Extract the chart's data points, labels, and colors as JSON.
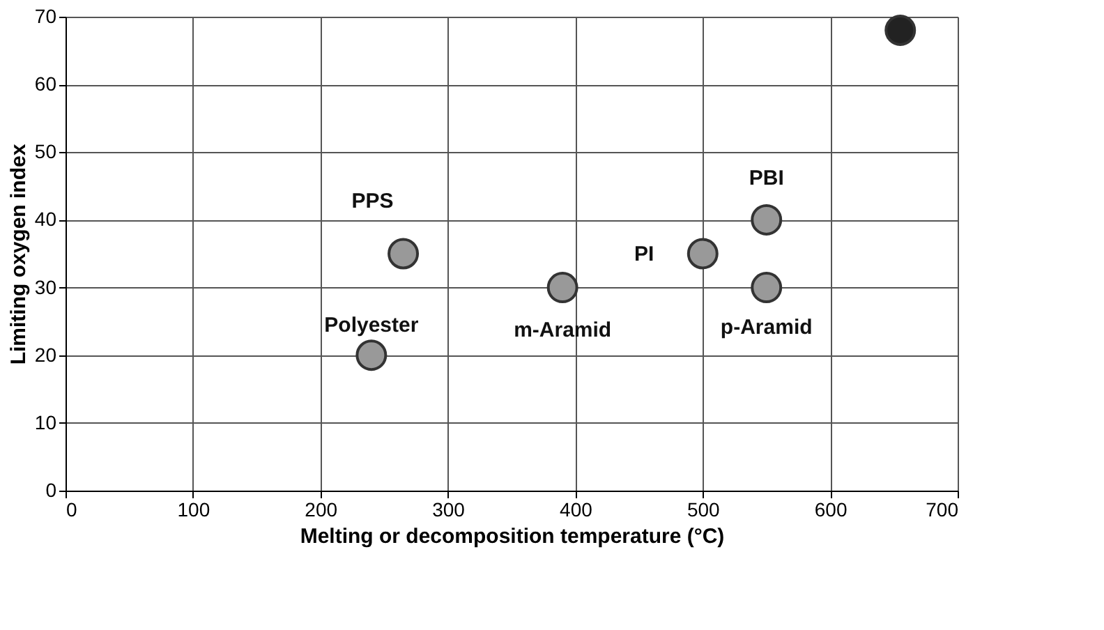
{
  "chart_data": {
    "type": "scatter",
    "xlabel": "Melting or decomposition temperature (°C)",
    "ylabel": "Limiting oxygen index",
    "x": [
      240,
      265,
      390,
      500,
      550,
      550,
      655
    ],
    "values": [
      20,
      35,
      30,
      35,
      40,
      30,
      68
    ],
    "colors": [
      "#999999",
      "#999999",
      "#999999",
      "#999999",
      "#999999",
      "#999999",
      "#222222"
    ],
    "marker": "circle",
    "grid": true,
    "xlim": [
      0,
      700
    ],
    "xticks": [
      0,
      100,
      200,
      300,
      400,
      500,
      600,
      700
    ],
    "ylim": [
      0,
      70
    ],
    "yticks": [
      0,
      10,
      20,
      30,
      40,
      50,
      60,
      70
    ],
    "annotations": [
      {
        "text": "Polyester",
        "x": 240,
        "y": 20
      },
      {
        "text": "PPS",
        "x": 265,
        "y": 35
      },
      {
        "text": "m-Aramid",
        "x": 390,
        "y": 30
      },
      {
        "text": "PI",
        "x": 500,
        "y": 35
      },
      {
        "text": "PBI",
        "x": 550,
        "y": 40
      },
      {
        "text": "p-Aramid",
        "x": 550,
        "y": 30
      }
    ]
  }
}
